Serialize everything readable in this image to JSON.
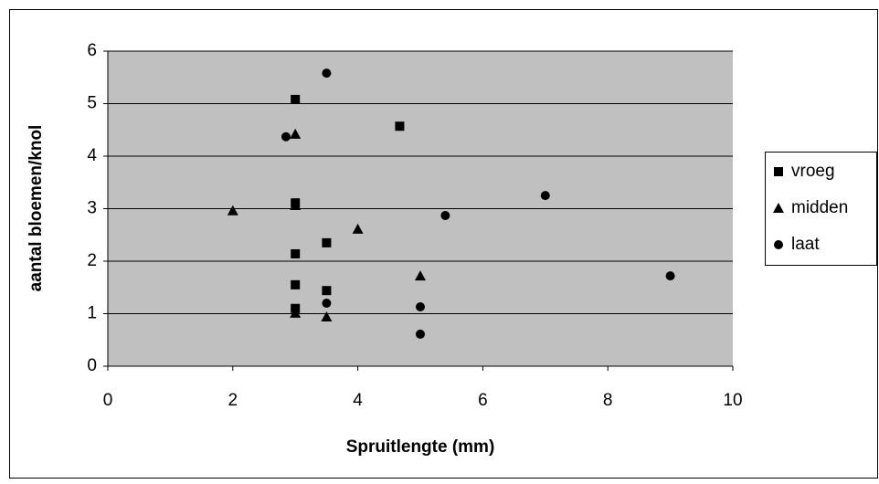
{
  "chart_data": {
    "type": "scatter",
    "x_label": "Spruitlengte (mm)",
    "y_label": "aantal bloemen/knol",
    "xlim": [
      0,
      10
    ],
    "xticks": [
      0,
      2,
      4,
      6,
      8,
      10
    ],
    "ylim": [
      0,
      6
    ],
    "yticks": [
      0,
      1,
      2,
      3,
      4,
      5,
      6
    ],
    "grid": true,
    "legend": "right",
    "series": [
      {
        "name": "vroeg",
        "color": "#000000",
        "marker": "square",
        "x": [
          3,
          4.67,
          3,
          3.5,
          3,
          3,
          3.5,
          3
        ],
        "values": [
          5.08,
          4.57,
          3.11,
          2.35,
          2.14,
          1.55,
          1.44,
          1.1
        ]
      },
      {
        "name": "midden",
        "color": "#000000",
        "marker": "triangle",
        "x": [
          3,
          2,
          3,
          4,
          5,
          3,
          3.5
        ],
        "values": [
          4.42,
          2.96,
          3.06,
          2.61,
          1.72,
          1.01,
          0.94
        ]
      },
      {
        "name": "laat",
        "color": "#000000",
        "marker": "circle",
        "x": [
          3.5,
          2.85,
          7,
          5.4,
          9,
          3.5,
          5,
          5
        ],
        "values": [
          5.58,
          4.37,
          3.25,
          2.87,
          1.72,
          1.2,
          1.13,
          0.61
        ]
      }
    ]
  }
}
